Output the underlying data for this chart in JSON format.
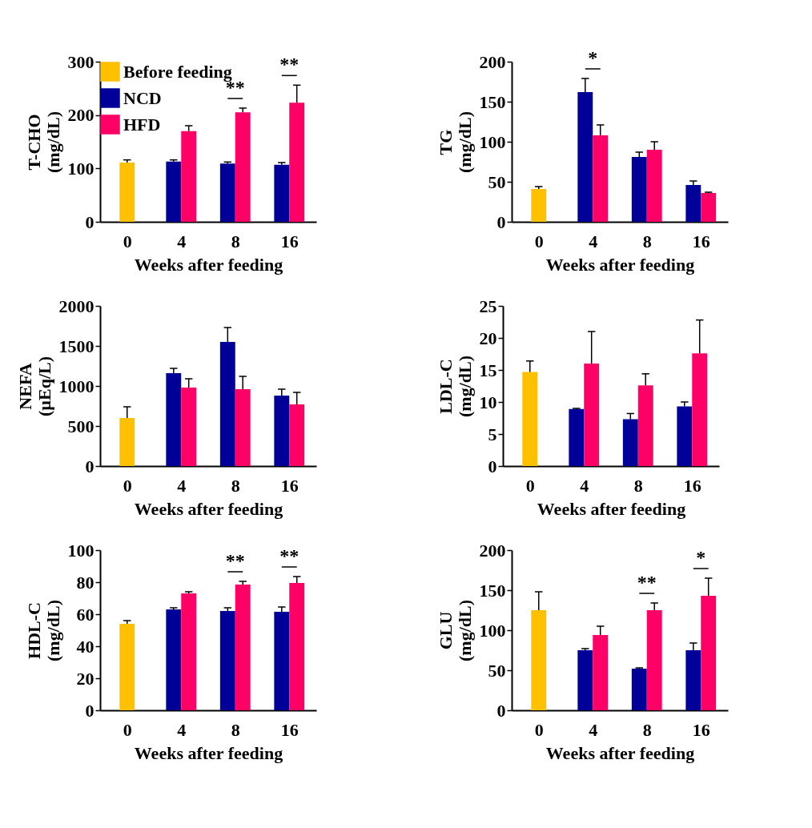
{
  "chart_data": [
    {
      "type": "bar",
      "categories": [
        "0",
        "4",
        "8",
        "16"
      ],
      "xlabel": "Weeks after feeding",
      "ylabel": "T-CHO\n(mg/dL)",
      "ylim": [
        0,
        300
      ],
      "yticks": [
        0,
        100,
        200,
        300
      ],
      "legend": "top left",
      "series": [
        {
          "name": "Before feeding",
          "color": "#ffc000",
          "values": [
            111,
            null,
            null,
            null
          ],
          "errors": [
            [
              111,
              116
            ],
            null,
            null,
            null
          ]
        },
        {
          "name": "NCD",
          "color": "#000099",
          "values": [
            null,
            113,
            109,
            107
          ],
          "errors": [
            null,
            [
              113,
              116
            ],
            [
              109,
              112
            ],
            [
              107,
              111
            ]
          ]
        },
        {
          "name": "HFD",
          "color": "#ff0066",
          "values": [
            null,
            170,
            205,
            223
          ],
          "errors": [
            null,
            [
              170,
              180
            ],
            [
              205,
              213
            ],
            [
              223,
              256
            ]
          ]
        }
      ],
      "annotations": [
        {
          "text": "**",
          "x": "8",
          "y": 213
        },
        {
          "text": "**",
          "x": "16",
          "y": 256
        }
      ]
    },
    {
      "type": "bar",
      "categories": [
        "0",
        "4",
        "8",
        "16"
      ],
      "xlabel": "Weeks after feeding",
      "ylabel": "TG\n(mg/dL)",
      "ylim": [
        0,
        200
      ],
      "yticks": [
        0,
        50,
        100,
        150,
        200
      ],
      "series": [
        {
          "color": "#ffc000",
          "values": [
            41,
            null,
            null,
            null
          ],
          "errors": [
            [
              41,
              44
            ],
            null,
            null,
            null
          ]
        },
        {
          "color": "#000099",
          "values": [
            null,
            162,
            81,
            46
          ],
          "errors": [
            null,
            [
              162,
              179
            ],
            [
              81,
              87
            ],
            [
              46,
              51
            ]
          ]
        },
        {
          "color": "#ff0066",
          "values": [
            null,
            108,
            90,
            36
          ],
          "errors": [
            null,
            [
              108,
              121
            ],
            [
              90,
              100
            ],
            [
              36,
              37
            ]
          ]
        }
      ],
      "annotations": [
        {
          "text": "*",
          "x": "4",
          "y": 162
        }
      ]
    },
    {
      "type": "bar",
      "categories": [
        "0",
        "4",
        "8",
        "16"
      ],
      "xlabel": "Weeks after feeding",
      "ylabel": "NEFA\n(µEq/L)",
      "ylim": [
        0,
        2000
      ],
      "yticks": [
        0,
        500,
        1000,
        1500,
        2000
      ],
      "series": [
        {
          "color": "#ffc000",
          "values": [
            600,
            null,
            null,
            null
          ],
          "errors": [
            [
              600,
              740
            ],
            null,
            null,
            null
          ]
        },
        {
          "color": "#000099",
          "values": [
            null,
            1160,
            1550,
            880
          ],
          "errors": [
            null,
            [
              1160,
              1220
            ],
            [
              1550,
              1730
            ],
            [
              880,
              960
            ]
          ]
        },
        {
          "color": "#ff0066",
          "values": [
            null,
            980,
            960,
            770
          ],
          "errors": [
            null,
            [
              980,
              1090
            ],
            [
              960,
              1120
            ],
            [
              770,
              920
            ]
          ]
        }
      ]
    },
    {
      "type": "bar",
      "categories": [
        "0",
        "4",
        "8",
        "16"
      ],
      "xlabel": "Weeks after feeding",
      "ylabel": "LDL-C\n(mg/dL)",
      "ylim": [
        0,
        25
      ],
      "yticks": [
        0,
        5,
        10,
        15,
        20,
        25
      ],
      "series": [
        {
          "color": "#ffc000",
          "values": [
            14.7,
            null,
            null,
            null
          ],
          "errors": [
            [
              14.7,
              16.4
            ],
            null,
            null,
            null
          ]
        },
        {
          "color": "#000099",
          "values": [
            null,
            8.9,
            7.3,
            9.3
          ],
          "errors": [
            null,
            [
              8.9,
              9
            ],
            [
              7.3,
              8.2
            ],
            [
              9.3,
              10
            ]
          ]
        },
        {
          "color": "#ff0066",
          "values": [
            null,
            16,
            12.6,
            17.6
          ],
          "errors": [
            null,
            [
              16,
              21
            ],
            [
              12.6,
              14.4
            ],
            [
              17.6,
              22.8
            ]
          ]
        }
      ]
    },
    {
      "type": "bar",
      "categories": [
        "0",
        "4",
        "8",
        "16"
      ],
      "xlabel": "Weeks after feeding",
      "ylabel": "HDL-C\n(mg/dL)",
      "ylim": [
        0,
        100
      ],
      "yticks": [
        0,
        20,
        40,
        60,
        80,
        100
      ],
      "series": [
        {
          "color": "#ffc000",
          "values": [
            54,
            null,
            null,
            null
          ],
          "errors": [
            [
              54,
              56
            ],
            null,
            null,
            null
          ]
        },
        {
          "color": "#000099",
          "values": [
            null,
            63,
            62,
            61.5
          ],
          "errors": [
            null,
            [
              63,
              64
            ],
            [
              62,
              64
            ],
            [
              61.5,
              64.5
            ]
          ]
        },
        {
          "color": "#ff0066",
          "values": [
            null,
            73,
            78.5,
            79.5
          ],
          "errors": [
            null,
            [
              73,
              74
            ],
            [
              78.5,
              80.5
            ],
            [
              79.5,
              83.5
            ]
          ]
        }
      ],
      "annotations": [
        {
          "text": "**",
          "x": "8",
          "y": 80.5
        },
        {
          "text": "**",
          "x": "16",
          "y": 83.5
        }
      ]
    },
    {
      "type": "bar",
      "categories": [
        "0",
        "4",
        "8",
        "16"
      ],
      "xlabel": "Weeks after feeding",
      "ylabel": "GLU\n(mg/dL)",
      "ylim": [
        0,
        200
      ],
      "yticks": [
        0,
        50,
        100,
        150,
        200
      ],
      "series": [
        {
          "color": "#ffc000",
          "values": [
            125,
            null,
            null,
            null
          ],
          "errors": [
            [
              125,
              148
            ],
            null,
            null,
            null
          ]
        },
        {
          "color": "#000099",
          "values": [
            null,
            75,
            52,
            75
          ],
          "errors": [
            null,
            [
              75,
              77
            ],
            [
              52,
              53
            ],
            [
              75,
              84
            ]
          ]
        },
        {
          "color": "#ff0066",
          "values": [
            null,
            94,
            125,
            143
          ],
          "errors": [
            null,
            [
              94,
              105
            ],
            [
              125,
              134
            ],
            [
              143,
              165
            ]
          ]
        }
      ],
      "annotations": [
        {
          "text": "**",
          "x": "8",
          "y": 134
        },
        {
          "text": "*",
          "x": "16",
          "y": 165
        }
      ]
    }
  ]
}
